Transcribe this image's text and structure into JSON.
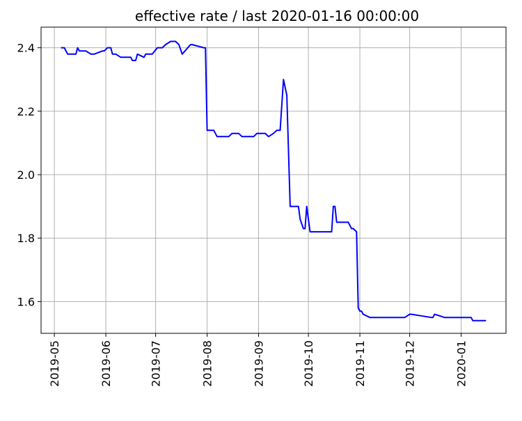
{
  "chart_data": {
    "type": "line",
    "title": "effective rate / last 2020-01-16 00:00:00",
    "xlabel": "",
    "ylabel": "",
    "grid": true,
    "xlim": [
      "2019-04-23",
      "2020-01-28"
    ],
    "ylim": [
      1.5,
      2.465
    ],
    "x_ticks": [
      "2019-05-01",
      "2019-06-01",
      "2019-07-01",
      "2019-08-01",
      "2019-09-01",
      "2019-10-01",
      "2019-11-01",
      "2019-12-01",
      "2020-01-01"
    ],
    "x_tick_labels": [
      "2019-05",
      "2019-06",
      "2019-07",
      "2019-08",
      "2019-09",
      "2019-10",
      "2019-11",
      "2019-12",
      "2020-01"
    ],
    "y_ticks": [
      1.6,
      1.8,
      2.0,
      2.2,
      2.4
    ],
    "y_tick_labels": [
      "1.6",
      "1.8",
      "2.0",
      "2.2",
      "2.4"
    ],
    "series": [
      {
        "color": "#0000ff",
        "x": [
          "2019-05-05",
          "2019-05-07",
          "2019-05-09",
          "2019-05-14",
          "2019-05-15",
          "2019-05-16",
          "2019-05-20",
          "2019-05-23",
          "2019-05-25",
          "2019-05-30",
          "2019-05-31",
          "2019-06-02",
          "2019-06-04",
          "2019-06-05",
          "2019-06-07",
          "2019-06-10",
          "2019-06-12",
          "2019-06-16",
          "2019-06-17",
          "2019-06-19",
          "2019-06-20",
          "2019-06-24",
          "2019-06-25",
          "2019-06-28",
          "2019-06-29",
          "2019-07-02",
          "2019-07-03",
          "2019-07-05",
          "2019-07-07",
          "2019-07-10",
          "2019-07-12",
          "2019-07-13",
          "2019-07-15",
          "2019-07-17",
          "2019-07-22",
          "2019-07-23",
          "2019-07-30",
          "2019-07-31",
          "2019-08-01",
          "2019-08-05",
          "2019-08-07",
          "2019-08-14",
          "2019-08-16",
          "2019-08-20",
          "2019-08-22",
          "2019-08-29",
          "2019-08-31",
          "2019-09-05",
          "2019-09-07",
          "2019-09-10",
          "2019-09-12",
          "2019-09-14",
          "2019-09-16",
          "2019-09-18",
          "2019-09-20",
          "2019-09-24",
          "2019-09-25",
          "2019-09-26",
          "2019-09-28",
          "2019-09-29",
          "2019-09-30",
          "2019-10-02",
          "2019-10-05",
          "2019-10-09",
          "2019-10-15",
          "2019-10-16",
          "2019-10-17",
          "2019-10-18",
          "2019-10-25",
          "2019-10-27",
          "2019-10-28",
          "2019-10-30",
          "2019-10-31",
          "2019-11-01",
          "2019-11-02",
          "2019-11-03",
          "2019-11-07",
          "2019-11-10",
          "2019-11-17",
          "2019-11-25",
          "2019-11-28",
          "2019-12-01",
          "2019-12-02",
          "2019-12-14",
          "2019-12-15",
          "2019-12-16",
          "2019-12-22",
          "2020-01-06",
          "2020-01-07",
          "2020-01-08",
          "2020-01-16"
        ],
        "y": [
          2.4,
          2.4,
          2.38,
          2.38,
          2.4,
          2.39,
          2.39,
          2.38,
          2.38,
          2.39,
          2.39,
          2.4,
          2.4,
          2.38,
          2.38,
          2.37,
          2.37,
          2.37,
          2.36,
          2.36,
          2.38,
          2.37,
          2.38,
          2.38,
          2.38,
          2.4,
          2.4,
          2.4,
          2.41,
          2.42,
          2.42,
          2.42,
          2.41,
          2.38,
          2.41,
          2.41,
          2.4,
          2.4,
          2.14,
          2.14,
          2.12,
          2.12,
          2.13,
          2.13,
          2.12,
          2.12,
          2.13,
          2.13,
          2.12,
          2.13,
          2.14,
          2.14,
          2.3,
          2.25,
          1.9,
          1.9,
          1.9,
          1.86,
          1.83,
          1.83,
          1.9,
          1.82,
          1.82,
          1.82,
          1.82,
          1.9,
          1.9,
          1.85,
          1.85,
          1.83,
          1.83,
          1.82,
          1.58,
          1.57,
          1.57,
          1.56,
          1.55,
          1.55,
          1.55,
          1.55,
          1.55,
          1.56,
          1.56,
          1.55,
          1.55,
          1.56,
          1.55,
          1.55,
          1.55,
          1.54,
          1.54
        ]
      }
    ]
  }
}
